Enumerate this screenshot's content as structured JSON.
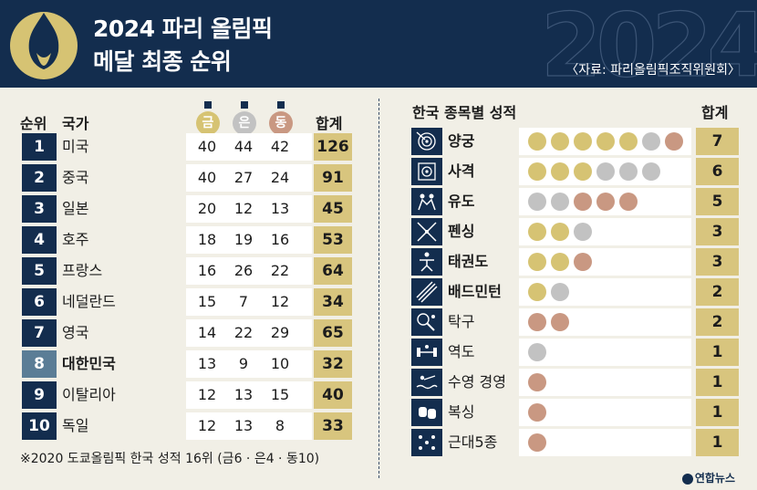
{
  "title": {
    "line1": "2024 파리 올림픽",
    "line2": "메달 최종 순위",
    "source": "〈자료: 파리올림픽조직위원회〉",
    "watermark": "2024"
  },
  "colors": {
    "navy": "#132d4e",
    "gold": "#d6c373",
    "silver": "#c2c2c2",
    "bronze": "#c99882",
    "total": "#d8c57e"
  },
  "ranking": {
    "header": {
      "rank": "순위",
      "country": "국가",
      "gold": "금",
      "silver": "은",
      "bronze": "동",
      "total": "합계"
    },
    "rows": [
      {
        "rank": "1",
        "country": "미국",
        "gold": "40",
        "silver": "44",
        "bronze": "42",
        "total": "126"
      },
      {
        "rank": "2",
        "country": "중국",
        "gold": "40",
        "silver": "27",
        "bronze": "24",
        "total": "91"
      },
      {
        "rank": "3",
        "country": "일본",
        "gold": "20",
        "silver": "12",
        "bronze": "13",
        "total": "45"
      },
      {
        "rank": "4",
        "country": "호주",
        "gold": "18",
        "silver": "19",
        "bronze": "16",
        "total": "53"
      },
      {
        "rank": "5",
        "country": "프랑스",
        "gold": "16",
        "silver": "26",
        "bronze": "22",
        "total": "64"
      },
      {
        "rank": "6",
        "country": "네덜란드",
        "gold": "15",
        "silver": "7",
        "bronze": "12",
        "total": "34"
      },
      {
        "rank": "7",
        "country": "영국",
        "gold": "14",
        "silver": "22",
        "bronze": "29",
        "total": "65"
      },
      {
        "rank": "8",
        "country": "대한민국",
        "gold": "13",
        "silver": "9",
        "bronze": "10",
        "total": "32"
      },
      {
        "rank": "9",
        "country": "이탈리아",
        "gold": "12",
        "silver": "13",
        "bronze": "15",
        "total": "40"
      },
      {
        "rank": "10",
        "country": "독일",
        "gold": "12",
        "silver": "13",
        "bronze": "8",
        "total": "33"
      }
    ],
    "footnote": "※2020 도쿄올림픽 한국 성적 16위 (금6 · 은4 · 동10)"
  },
  "korea": {
    "header": {
      "title": "한국 종목별 성적",
      "total": "합계"
    },
    "rows": [
      {
        "icon": "archery-icon",
        "sport": "양궁",
        "gold": 5,
        "silver": 1,
        "bronze": 1,
        "total": "7"
      },
      {
        "icon": "shooting-icon",
        "sport": "사격",
        "gold": 3,
        "silver": 3,
        "bronze": 0,
        "total": "6"
      },
      {
        "icon": "judo-icon",
        "sport": "유도",
        "gold": 0,
        "silver": 2,
        "bronze": 3,
        "total": "5"
      },
      {
        "icon": "fencing-icon",
        "sport": "펜싱",
        "gold": 2,
        "silver": 1,
        "bronze": 0,
        "total": "3"
      },
      {
        "icon": "taekwondo-icon",
        "sport": "태권도",
        "gold": 2,
        "silver": 0,
        "bronze": 1,
        "total": "3"
      },
      {
        "icon": "badminton-icon",
        "sport": "배드민턴",
        "gold": 1,
        "silver": 1,
        "bronze": 0,
        "total": "2"
      },
      {
        "icon": "table-tennis-icon",
        "sport": "탁구",
        "gold": 0,
        "silver": 0,
        "bronze": 2,
        "total": "2"
      },
      {
        "icon": "weightlifting-icon",
        "sport": "역도",
        "gold": 0,
        "silver": 1,
        "bronze": 0,
        "total": "1"
      },
      {
        "icon": "swimming-icon",
        "sport": "수영 경영",
        "gold": 0,
        "silver": 0,
        "bronze": 1,
        "total": "1"
      },
      {
        "icon": "boxing-icon",
        "sport": "복싱",
        "gold": 0,
        "silver": 0,
        "bronze": 1,
        "total": "1"
      },
      {
        "icon": "modern-pentathlon-icon",
        "sport": "근대5종",
        "gold": 0,
        "silver": 0,
        "bronze": 1,
        "total": "1"
      }
    ]
  },
  "credit": "연합뉴스"
}
